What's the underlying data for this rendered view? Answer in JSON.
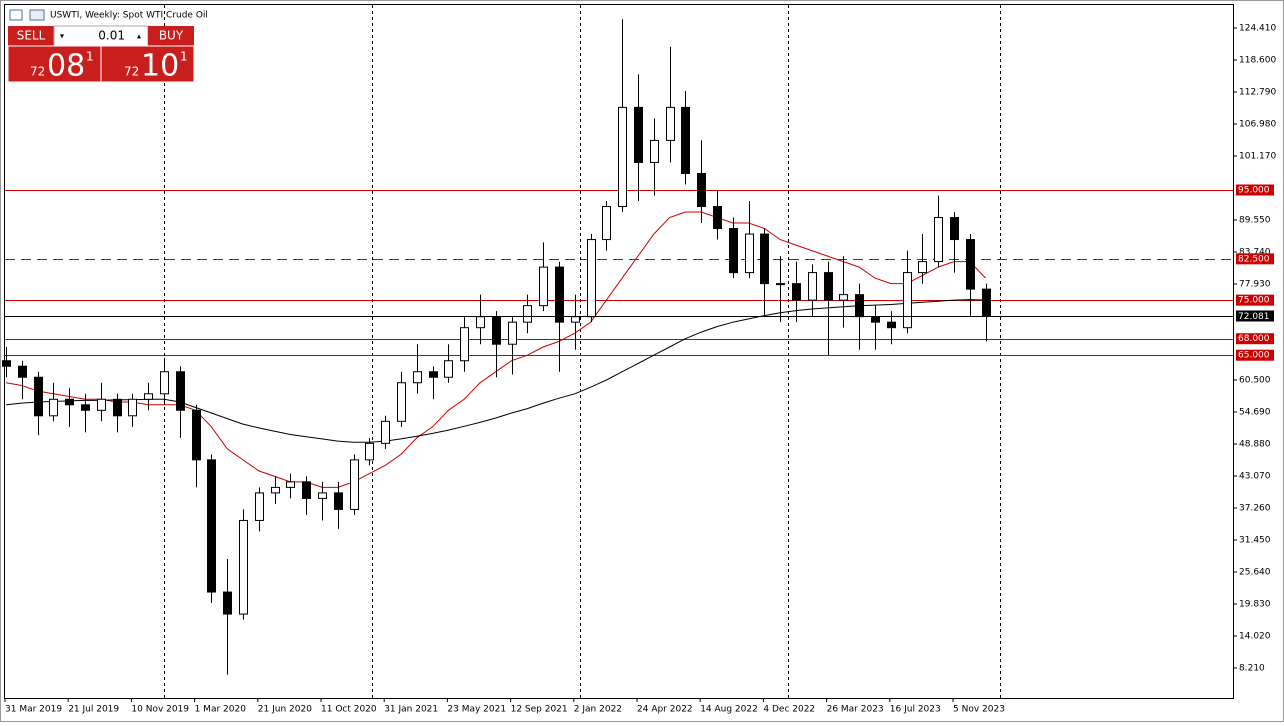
{
  "ui": {
    "symbol": "USWTI, Weekly:  Spot WTI Crude Oil",
    "sell": "SELL",
    "buy": "BUY",
    "lot": "0.01",
    "bid": {
      "pre": "72",
      "big": "08",
      "sup": "1"
    },
    "ask": {
      "pre": "72",
      "big": "10",
      "sup": "1"
    }
  },
  "chart_data": {
    "type": "candlestick",
    "categories": [
      "31 Mar 2019",
      null,
      null,
      null,
      "21 Jul 2019",
      null,
      null,
      null,
      "10 Nov 2019",
      null,
      null,
      null,
      "1 Mar 2020",
      null,
      null,
      null,
      "21 Jun 2020",
      null,
      null,
      null,
      "11 Oct 2020",
      null,
      null,
      null,
      "31 Jan 2021",
      null,
      null,
      null,
      "23 May 2021",
      null,
      null,
      null,
      "12 Sep 2021",
      null,
      null,
      null,
      "2 Jan 2022",
      null,
      null,
      null,
      "24 Apr 2022",
      null,
      null,
      null,
      "14 Aug 2022",
      null,
      null,
      null,
      "4 Dec 2022",
      null,
      null,
      null,
      "26 Mar 2023",
      null,
      null,
      null,
      "16 Jul 2023",
      null,
      null,
      null,
      "5 Nov 2023",
      null,
      null
    ],
    "open": [
      64,
      63,
      61,
      54,
      57,
      56,
      55,
      57,
      54,
      57,
      58,
      62,
      55,
      46,
      22,
      18,
      35,
      40,
      41,
      42,
      39,
      40,
      37,
      46,
      49,
      53,
      60,
      62,
      61,
      64,
      70,
      72,
      67,
      71,
      74,
      81,
      71,
      72,
      86,
      92,
      110,
      100,
      104,
      110,
      98,
      92,
      88,
      80,
      87,
      78,
      78,
      75,
      80,
      75,
      76,
      72,
      71,
      70,
      80,
      82,
      90,
      86,
      77
    ],
    "high": [
      66.5,
      64,
      62,
      60,
      59,
      58,
      60,
      58,
      58,
      60,
      64.5,
      63,
      56,
      47,
      28,
      37,
      41,
      43,
      43.5,
      43,
      42,
      42,
      47,
      50,
      54,
      62,
      67,
      63,
      67,
      72,
      76,
      73,
      72,
      76,
      85.5,
      82,
      76,
      87,
      93,
      126,
      116,
      108,
      121,
      113,
      104,
      95,
      90,
      93,
      88,
      83,
      82,
      81.5,
      82,
      83,
      78,
      74,
      73,
      84,
      87,
      94,
      91,
      87,
      78
    ],
    "low": [
      61,
      57,
      50.5,
      53,
      52,
      51,
      53,
      51,
      52,
      55,
      56,
      50,
      41,
      20,
      7,
      17,
      33,
      38,
      39,
      36,
      35,
      33.5,
      36,
      45,
      48,
      52,
      58,
      57,
      60,
      62,
      67,
      61,
      61.5,
      69,
      73,
      62,
      66,
      71,
      84,
      91,
      93,
      94,
      100,
      96,
      89,
      86,
      79,
      79,
      72,
      71,
      71,
      72,
      65,
      70,
      66,
      66,
      67,
      69,
      78,
      81,
      80,
      72,
      67.5
    ],
    "close": [
      63,
      61,
      54,
      57,
      56,
      55,
      57,
      54,
      57,
      58,
      62,
      55,
      46,
      22,
      18,
      35,
      40,
      41,
      42,
      39,
      40,
      37,
      46,
      49,
      53,
      60,
      62,
      61,
      64,
      70,
      72,
      67,
      71,
      74,
      81,
      71,
      72,
      86,
      92,
      110,
      100,
      104,
      110,
      98,
      92,
      88,
      80,
      87,
      78,
      78,
      75,
      80,
      75,
      76,
      72,
      71,
      70,
      80,
      82,
      90,
      86,
      77,
      72.081
    ],
    "overlays": [
      {
        "color": "#cc0000",
        "values": [
          60,
          59.5,
          58.5,
          58,
          57.5,
          57,
          57,
          56.5,
          56.5,
          56,
          56,
          56,
          55,
          52,
          48,
          46,
          44,
          43,
          42,
          42,
          41,
          41,
          42,
          43.5,
          45,
          47,
          50,
          52,
          55,
          57,
          60,
          62,
          64,
          65,
          66.5,
          67.5,
          69,
          71,
          75,
          79,
          83,
          87,
          90,
          91,
          91,
          90,
          89,
          89,
          88,
          86,
          85,
          84,
          83,
          82,
          81,
          79,
          78,
          78,
          79.5,
          81,
          82,
          82,
          79
        ]
      },
      {
        "color": "#000000",
        "values": [
          56,
          56.3,
          56.5,
          56.6,
          56.7,
          56.8,
          56.8,
          56.9,
          56.9,
          57,
          57,
          56.5,
          55.5,
          54.5,
          53.5,
          52.5,
          51.8,
          51.2,
          50.6,
          50.2,
          49.8,
          49.4,
          49.2,
          49.2,
          49.4,
          49.8,
          50.3,
          50.8,
          51.4,
          52.1,
          52.8,
          53.6,
          54.5,
          55.3,
          56.3,
          57.2,
          58,
          59.2,
          60.5,
          62,
          63.5,
          65,
          66.5,
          68,
          69.2,
          70.2,
          71,
          71.6,
          72.2,
          72.7,
          73.1,
          73.4,
          73.6,
          73.8,
          74,
          74.1,
          74.2,
          74.4,
          74.6,
          74.8,
          75,
          75.1,
          75
        ]
      }
    ],
    "ylim": [
      2.76,
      128.59
    ],
    "yticks": [
      {
        "value": 124.41,
        "label": "124.410"
      },
      {
        "value": 118.6,
        "label": "118.600"
      },
      {
        "value": 112.79,
        "label": "112.790"
      },
      {
        "value": 106.98,
        "label": "106.980"
      },
      {
        "value": 101.17,
        "label": "101.170"
      },
      {
        "value": 89.55,
        "label": "89.550"
      },
      {
        "value": 83.74,
        "label": "83.740"
      },
      {
        "value": 77.93,
        "label": "77.930"
      },
      {
        "value": 60.5,
        "label": "60.500"
      },
      {
        "value": 54.69,
        "label": "54.690"
      },
      {
        "value": 48.88,
        "label": "48.880"
      },
      {
        "value": 43.07,
        "label": "43.070"
      },
      {
        "value": 37.26,
        "label": "37.260"
      },
      {
        "value": 31.45,
        "label": "31.450"
      },
      {
        "value": 25.64,
        "label": "25.640"
      },
      {
        "value": 19.83,
        "label": "19.830"
      },
      {
        "value": 14.02,
        "label": "14.020"
      },
      {
        "value": 8.21,
        "label": "8.210"
      }
    ],
    "levels": [
      {
        "value": 95,
        "label": "95.000",
        "style": "solid"
      },
      {
        "value": 82.5,
        "label": "82.500",
        "style": "dashed"
      },
      {
        "value": 75,
        "label": "75.000",
        "style": "solid"
      },
      {
        "value": 68,
        "label": "68.000",
        "style": "solid"
      },
      {
        "value": 65,
        "label": "65.000",
        "style": "solid"
      }
    ],
    "level_color": "#cc0000",
    "last_price": 72.081,
    "up_color": "#ffffff",
    "down_color": "#000000"
  }
}
